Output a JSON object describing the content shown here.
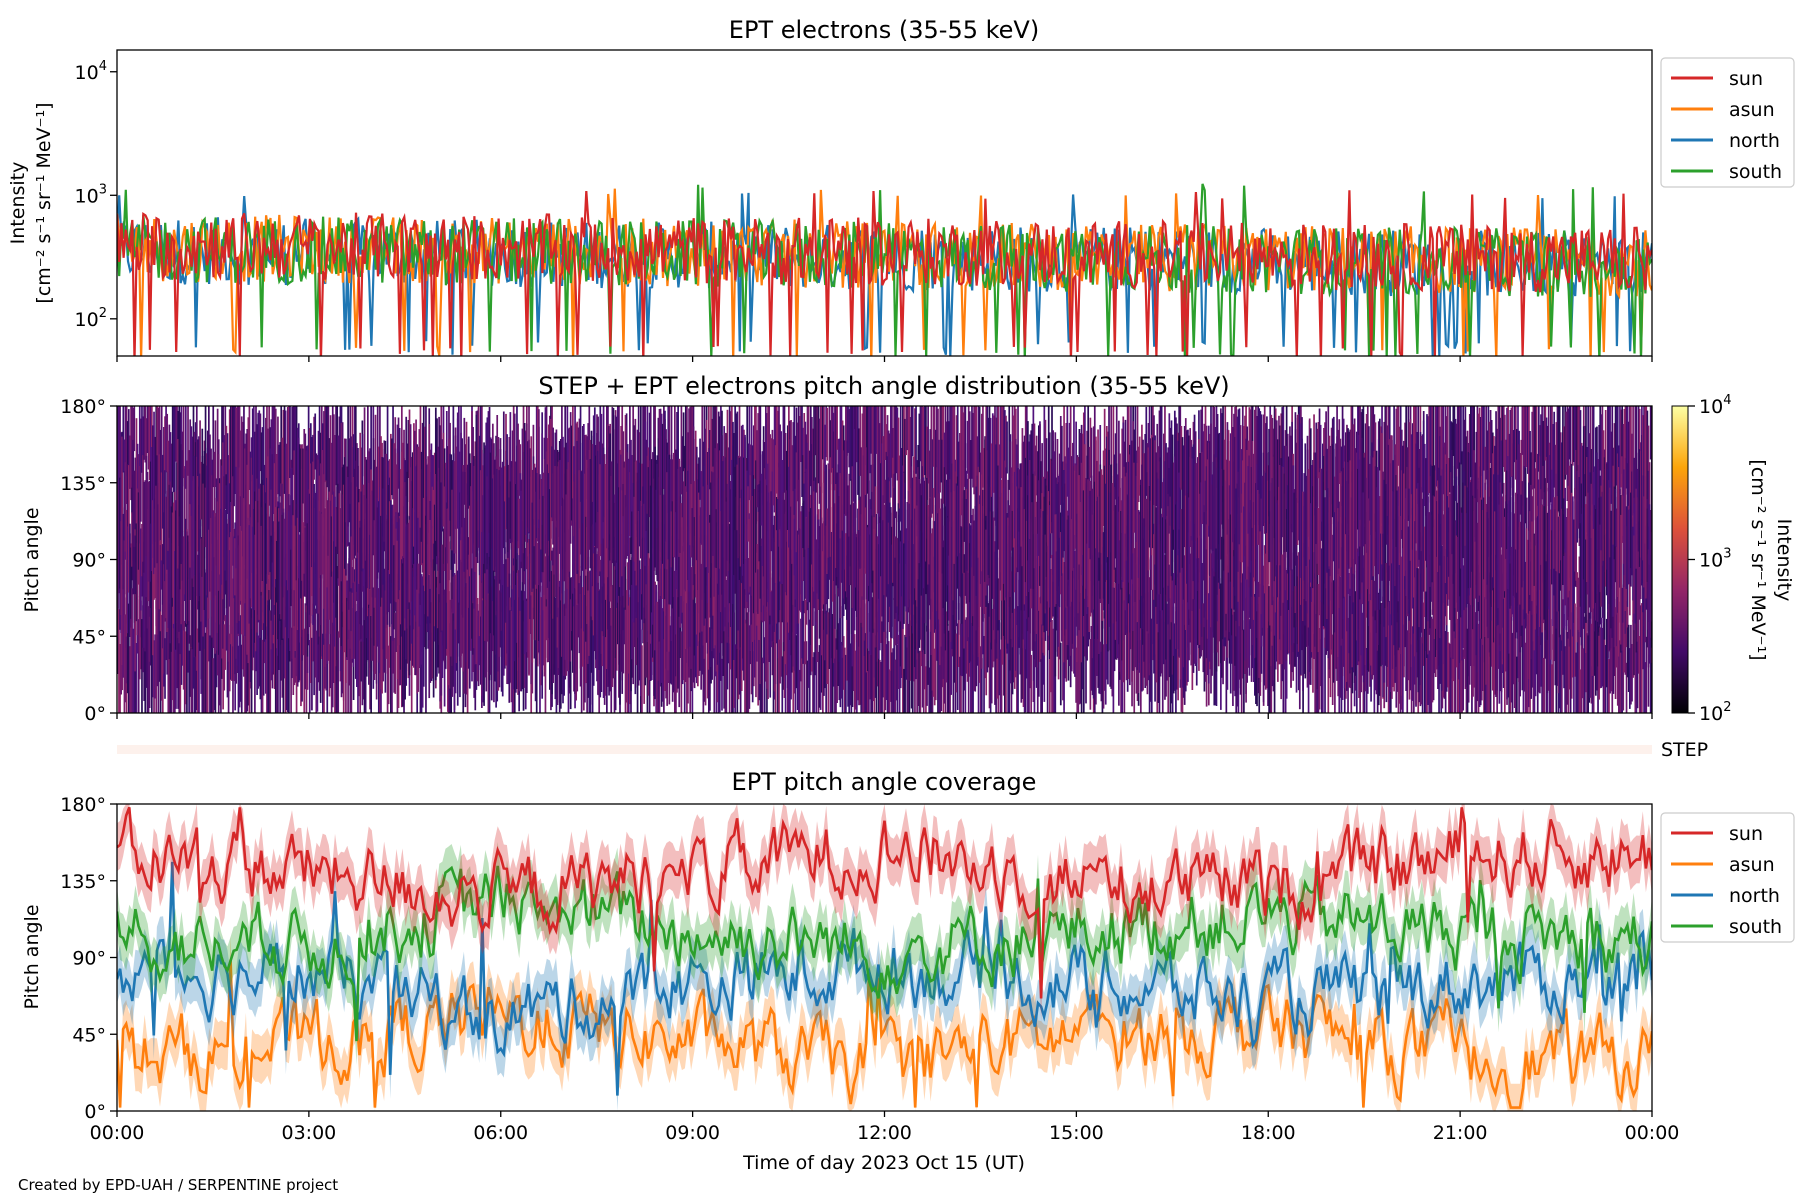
{
  "colors": {
    "sun": "#d62728",
    "asun": "#ff7f0e",
    "north": "#1f77b4",
    "south": "#2ca02c",
    "step_band": "#fdf1ec"
  },
  "footer": "Created by EPD-UAH / SERPENTINE project",
  "step_label": "STEP",
  "chart_data": [
    {
      "type": "line",
      "title": "EPT electrons (35-55 keV)",
      "ylabel": "Intensity",
      "yunit": "[cm⁻² s⁻¹ sr⁻¹ MeV⁻¹]",
      "yscale": "log",
      "ylim": [
        50,
        15000
      ],
      "xlim": [
        "2023-10-15 00:00",
        "2023-10-16 00:00"
      ],
      "yticks": [
        {
          "value": 100,
          "base": "10",
          "exp": "2"
        },
        {
          "value": 1000,
          "base": "10",
          "exp": "3"
        },
        {
          "value": 10000,
          "base": "10",
          "exp": "4"
        }
      ],
      "legend_position": "outside-right-top",
      "series": [
        {
          "name": "sun",
          "color": "#d62728",
          "typical": 400,
          "min_dips": 50,
          "max_peak": 1100
        },
        {
          "name": "asun",
          "color": "#ff7f0e",
          "typical": 380,
          "min_dips": 50,
          "max_peak": 1150
        },
        {
          "name": "north",
          "color": "#1f77b4",
          "typical": 360,
          "min_dips": 55,
          "max_peak": 1050
        },
        {
          "name": "south",
          "color": "#2ca02c",
          "typical": 370,
          "min_dips": 50,
          "max_peak": 1250
        }
      ]
    },
    {
      "type": "heatmap",
      "title": "STEP + EPT electrons pitch angle distribution (35-55 keV)",
      "ylabel": "Pitch angle",
      "ylim": [
        0,
        180
      ],
      "yticks": [
        "0°",
        "45°",
        "90°",
        "135°",
        "180°"
      ],
      "colorbar": {
        "label": "Intensity",
        "unit": "[cm⁻² s⁻¹ sr⁻¹ MeV⁻¹]",
        "scale": "log",
        "range": [
          100,
          10000
        ],
        "colormap": "inferno",
        "ticks": [
          {
            "value": 100,
            "base": "10",
            "exp": "2"
          },
          {
            "value": 1000,
            "base": "10",
            "exp": "3"
          },
          {
            "value": 10000,
            "base": "10",
            "exp": "4"
          }
        ]
      },
      "typical_intensity": 400
    },
    {
      "type": "line",
      "title": "EPT pitch angle coverage",
      "ylabel": "Pitch angle",
      "xlabel": "Time of day 2023 Oct 15 (UT)",
      "ylim": [
        0,
        180
      ],
      "yticks": [
        "0°",
        "45°",
        "90°",
        "135°",
        "180°"
      ],
      "xticks": [
        "00:00",
        "03:00",
        "06:00",
        "09:00",
        "12:00",
        "15:00",
        "18:00",
        "21:00",
        "00:00"
      ],
      "legend_position": "outside-right-top",
      "series": [
        {
          "name": "sun",
          "color": "#d62728",
          "hours": [
            0,
            3,
            6,
            9,
            12,
            15,
            18,
            21,
            24
          ],
          "values": [
            150,
            140,
            125,
            140,
            155,
            135,
            130,
            150,
            150
          ]
        },
        {
          "name": "asun",
          "color": "#ff7f0e",
          "hours": [
            0,
            3,
            6,
            9,
            12,
            15,
            18,
            21,
            24
          ],
          "values": [
            30,
            40,
            55,
            40,
            25,
            45,
            50,
            30,
            30
          ]
        },
        {
          "name": "north",
          "color": "#1f77b4",
          "hours": [
            0,
            3,
            6,
            9,
            12,
            15,
            18,
            21,
            24
          ],
          "values": [
            85,
            80,
            55,
            75,
            85,
            75,
            65,
            75,
            80
          ]
        },
        {
          "name": "south",
          "color": "#2ca02c",
          "hours": [
            0,
            3,
            6,
            9,
            12,
            15,
            18,
            21,
            24
          ],
          "values": [
            100,
            95,
            125,
            105,
            95,
            105,
            115,
            105,
            100
          ]
        }
      ]
    }
  ]
}
